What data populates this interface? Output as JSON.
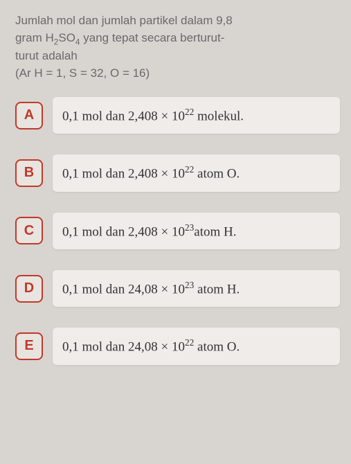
{
  "question": {
    "line1": "Jumlah mol dan jumlah partikel dalam 9,8",
    "line2_pre": "gram H",
    "line2_sub1": "2",
    "line2_mid": "SO",
    "line2_sub2": "4",
    "line2_post": " yang tepat secara berturut-",
    "line3": "turut adalah",
    "given": "(Ar H = 1, S = 32, O = 16)"
  },
  "options": [
    {
      "letter": "A",
      "pre": "0,1 mol dan 2,408 × 10",
      "sup": "22",
      "post": " molekul."
    },
    {
      "letter": "B",
      "pre": "0,1 mol dan 2,408 × 10",
      "sup": "22",
      "post": " atom O."
    },
    {
      "letter": "C",
      "pre": "0,1 mol dan 2,408 × 10",
      "sup": "23",
      "post": "atom H."
    },
    {
      "letter": "D",
      "pre": "0,1 mol dan 24,08 ×  10",
      "sup": "23",
      "post": " atom H."
    },
    {
      "letter": "E",
      "pre": "0,1 mol dan 24,08 × 10",
      "sup": "22",
      "post": " atom O."
    }
  ],
  "colors": {
    "page_bg": "#d8d4d0",
    "question_text": "#6a6a6a",
    "option_border": "#c0392b",
    "option_letter_text": "#c0392b",
    "option_bg": "#efece9",
    "option_text": "#333333"
  },
  "typography": {
    "question_fontsize": 17,
    "option_letter_fontsize": 20,
    "option_text_fontsize": 19
  }
}
